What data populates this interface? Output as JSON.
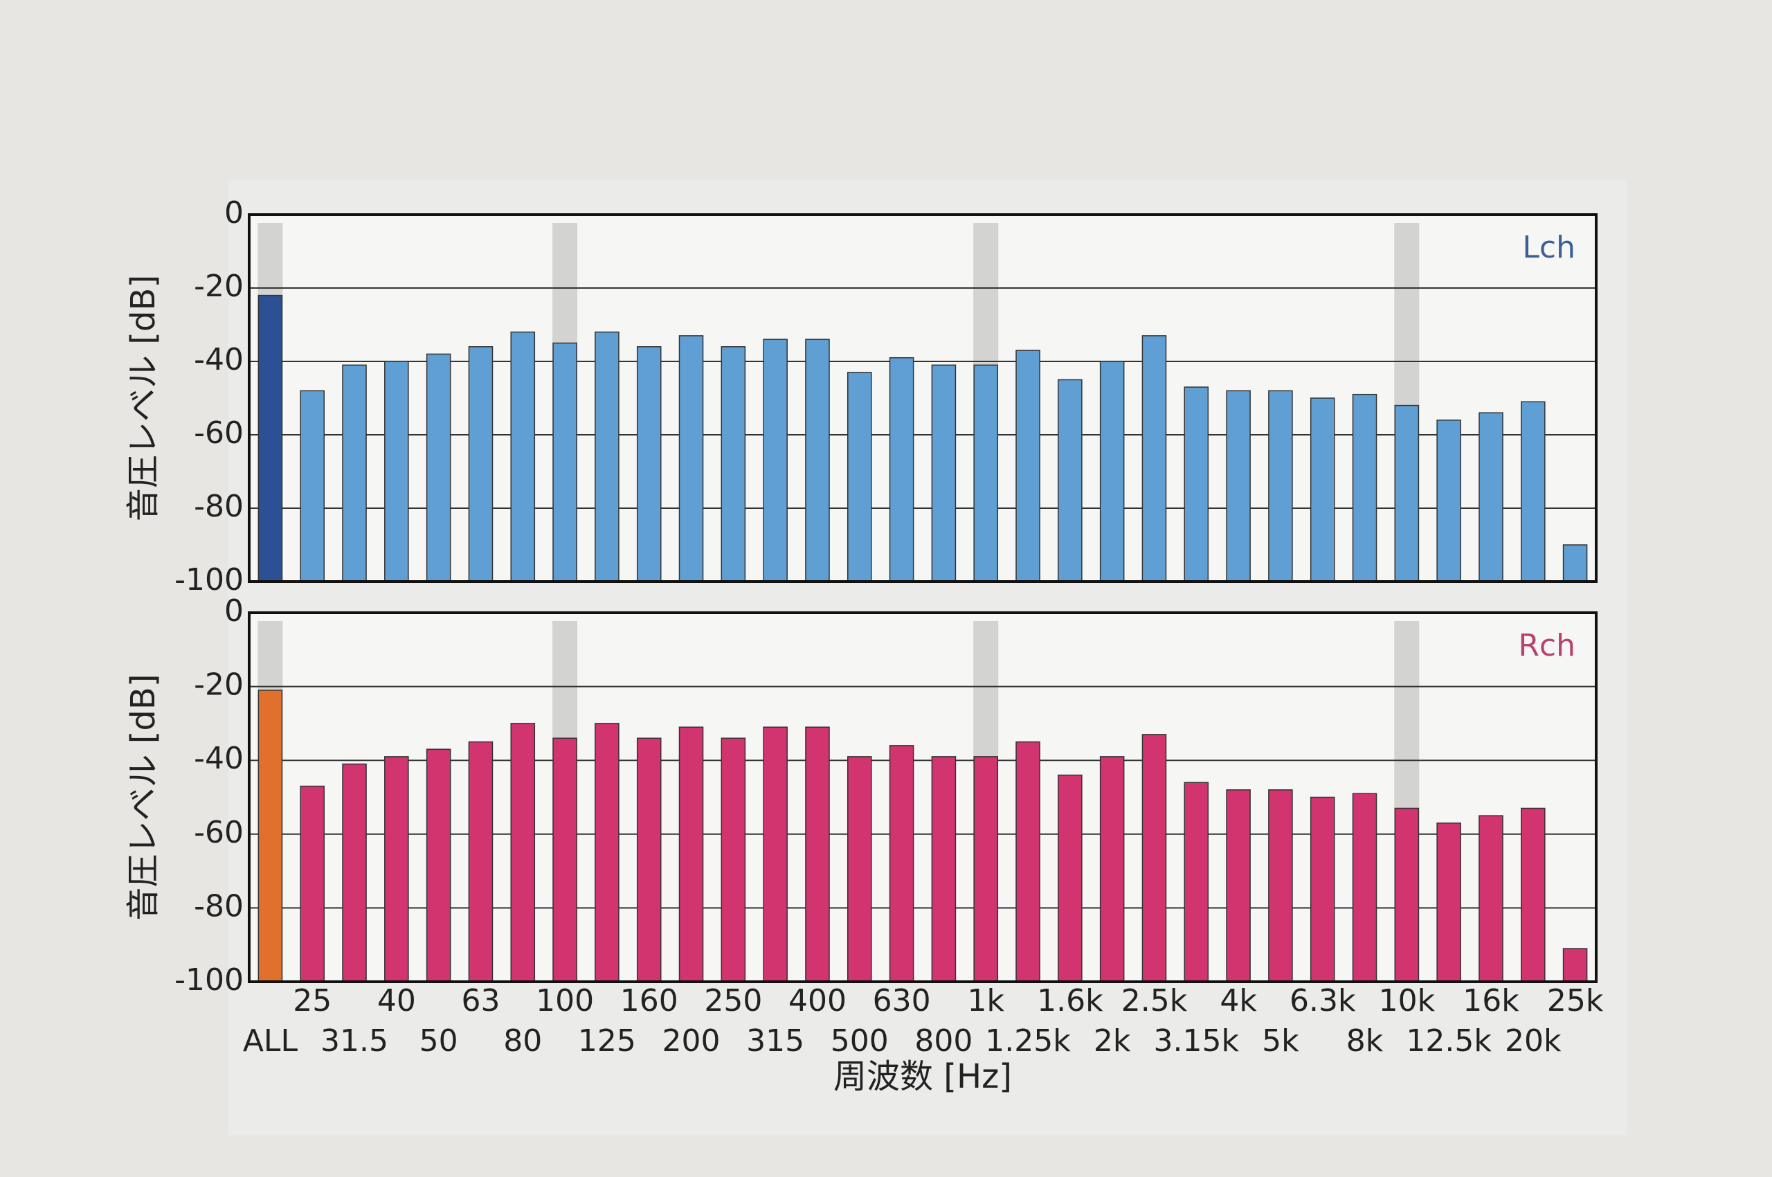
{
  "chart_data": [
    {
      "type": "bar",
      "channel_label": "Lch",
      "y_label": "音圧レベル [dB]",
      "color": "#5f9fd3",
      "first_color": "#2d4f93",
      "label_color": "#3c5f9a",
      "values": [
        -22,
        -48,
        -41,
        -40,
        -38,
        -36,
        -32,
        -35,
        -32,
        -36,
        -33,
        -36,
        -34,
        -34,
        -43,
        -39,
        -41,
        -41,
        -37,
        -45,
        -40,
        -33,
        -47,
        -48,
        -48,
        -50,
        -49,
        -52,
        -56,
        -54,
        -51,
        -90
      ],
      "ylim": [
        -100,
        0
      ],
      "yticks": [
        -100,
        -80,
        -60,
        -40,
        -20,
        0
      ],
      "grid": true
    },
    {
      "type": "bar",
      "channel_label": "Rch",
      "y_label": "音圧レベル [dB]",
      "color": "#d1346f",
      "first_color": "#e0702c",
      "label_color": "#b8426d",
      "x_label": "周波数 [Hz]",
      "categories": [
        "ALL",
        "25",
        "31.5",
        "40",
        "50",
        "63",
        "80",
        "100",
        "125",
        "160",
        "200",
        "250",
        "315",
        "400",
        "500",
        "630",
        "800",
        "1k",
        "1.25k",
        "1.6k",
        "2k",
        "2.5k",
        "3.15k",
        "4k",
        "5k",
        "6.3k",
        "8k",
        "10k",
        "12.5k",
        "16k",
        "20k",
        "25k"
      ],
      "values": [
        -21,
        -47,
        -41,
        -39,
        -37,
        -35,
        -30,
        -34,
        -30,
        -34,
        -31,
        -34,
        -31,
        -31,
        -39,
        -36,
        -39,
        -39,
        -35,
        -44,
        -39,
        -33,
        -46,
        -48,
        -48,
        -50,
        -49,
        -53,
        -57,
        -55,
        -53,
        -91
      ],
      "ylim": [
        -100,
        0
      ],
      "yticks": [
        -100,
        -80,
        -60,
        -40,
        -20,
        0
      ],
      "grid": true
    }
  ]
}
